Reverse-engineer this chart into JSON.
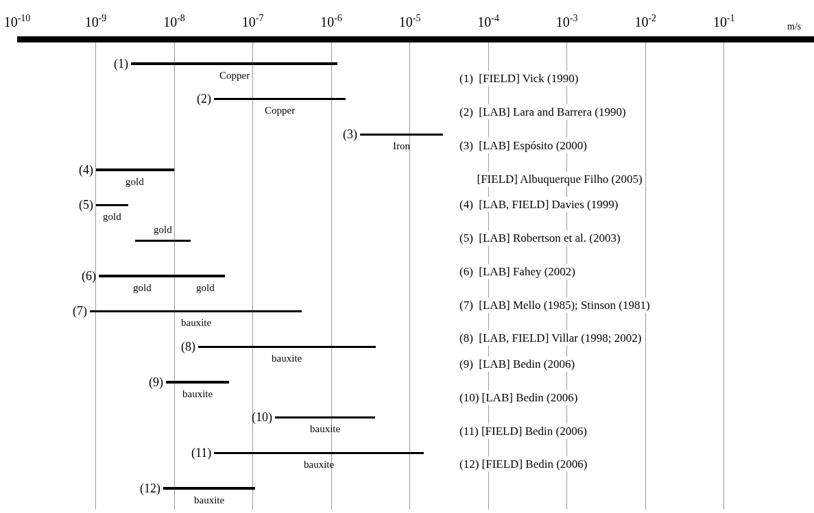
{
  "chart_data": {
    "type": "bar",
    "orientation": "horizontal",
    "xlabel": "m/s",
    "log": "x",
    "categories": [
      "(1)",
      "(2)",
      "(3)",
      "(4)",
      "(5)",
      null,
      "(6)",
      "(7)",
      "(8)",
      "(9)",
      "(10)",
      "(11)",
      "(12)"
    ],
    "series": [
      {
        "color": "#000000",
        "base": [
          2.8e-09,
          3.2e-08,
          2.3e-06,
          1e-09,
          1e-09,
          3.2e-09,
          1.1e-09,
          8.5e-10,
          2e-08,
          7.9e-09,
          1.9e-07,
          3.2e-08,
          7.2e-09
        ],
        "values": [
          1.2e-06,
          1.5e-06,
          2.4e-05,
          9e-09,
          1.6e-09,
          1.3e-08,
          1.3e-08,
          4.2e-07,
          3.7e-06,
          4.2e-08,
          3.4e-06,
          1.5e-05,
          1e-07
        ]
      },
      {
        "color": "#000000",
        "base": [
          null,
          null,
          null,
          null,
          null,
          null,
          1.4e-08,
          null,
          null,
          null,
          null,
          null,
          null
        ],
        "values": [
          null,
          null,
          null,
          null,
          null,
          null,
          3e-08,
          null,
          null,
          null,
          null,
          null,
          null
        ]
      }
    ],
    "xlim": [
      1e-10,
      1.4
    ],
    "xticks": [
      {
        "value": 1e-10,
        "label": "10$^{-10}$"
      },
      {
        "value": 1e-09,
        "label": "10$^{-9}$"
      },
      {
        "value": 1e-08,
        "label": "10$^{-8}$"
      },
      {
        "value": 1e-07,
        "label": "10$^{-7}$"
      },
      {
        "value": 1e-06,
        "label": "10$^{-6}$"
      },
      {
        "value": 1e-05,
        "label": "10$^{-5}$"
      },
      {
        "value": 0.0001,
        "label": "10$^{-4}$"
      },
      {
        "value": 0.001,
        "label": "10$^{-3}$"
      },
      {
        "value": 0.01,
        "label": "10$^{-2}$"
      },
      {
        "value": 0.1,
        "label": "10$^{-1}$"
      }
    ],
    "grid": "x",
    "tick_labels": "x",
    "annotations": [
      "Copper",
      "Copper",
      "Iron",
      "gold",
      "gold",
      "gold",
      "gold",
      "bauxite",
      "bauxite",
      "bauxite",
      "bauxite",
      "bauxite",
      "bauxite",
      "gold",
      "(1)  [FIELD] Vick (1990)",
      "(2)  [LAB] Lara and Barrera (1990)",
      "(3)  [LAB] Espósito (2000)",
      "      [FIELD] Albuquerque Filho (2005)",
      "(4)  [LAB, FIELD] Davies (1999)",
      "(5)  [LAB] Robertson et al. (2003)",
      "(6)  [LAB] Fahey (2002)",
      "(7)  [LAB] Mello (1985); Stinson (1981)",
      "(8)  [LAB, FIELD] Villar (1998; 2002)",
      "(9)  [LAB] Bedin (2006)",
      "(10) [LAB] Bedin (2006)",
      "(11) [FIELD] Bedin (2006)",
      "(12) [FIELD] Bedin (2006)"
    ]
  }
}
